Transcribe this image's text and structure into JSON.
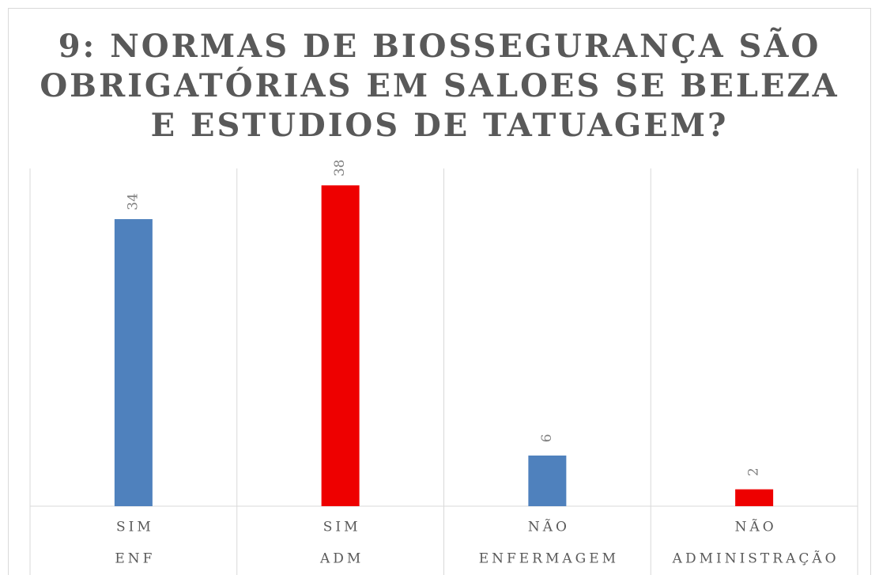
{
  "chart_data": {
    "type": "bar",
    "title": [
      "9: NORMAS DE BIOSSEGURANÇA SÃO",
      "OBRIGATÓRIAS EM SALOES SE BELEZA",
      "E ESTUDIOS DE TATUAGEM?"
    ],
    "categories": [
      [
        "SIM",
        "ENF"
      ],
      [
        "SIM",
        "ADM"
      ],
      [
        "NÃO",
        "ENFERMAGEM"
      ],
      [
        "NÃO",
        "ADMINISTRAÇÃO"
      ]
    ],
    "values": [
      34,
      38,
      6,
      2
    ],
    "colors": [
      "#4f81bd",
      "#ee0000",
      "#4f81bd",
      "#ee0000"
    ],
    "ylim": [
      0,
      40
    ]
  }
}
